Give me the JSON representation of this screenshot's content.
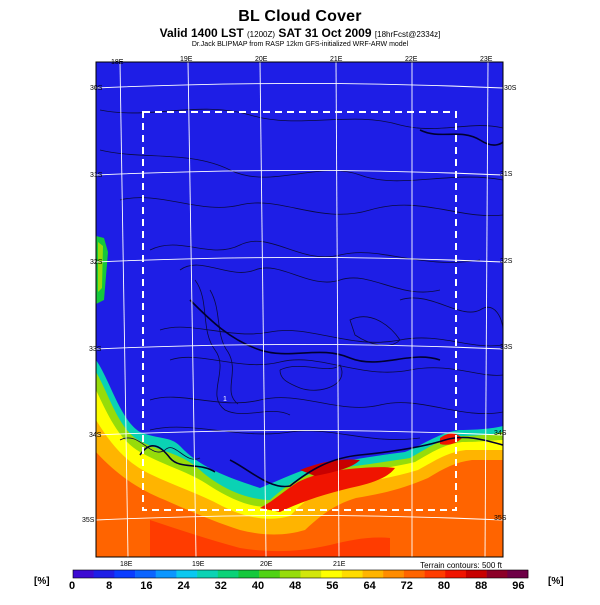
{
  "header": {
    "title": "BL Cloud Cover",
    "subtitle_main": "Valid 1400 LST",
    "subtitle_tz": "(1200Z)",
    "subtitle_date": "SAT 31 Oct 2009",
    "subtitle_forecast": "[18hrFcst@2334z]",
    "credit": "Dr.Jack BLIPMAP from RASP 12km GFS-initialized WRF-ARW model"
  },
  "map": {
    "top_lon_labels": [
      "18E",
      "19E",
      "20E",
      "21E",
      "22E",
      "23E"
    ],
    "bottom_lon_labels": [
      "18E",
      "19E",
      "20E",
      "21E"
    ],
    "left_lat_labels": [
      "30S",
      "31S",
      "32S",
      "33S",
      "34S",
      "35S"
    ],
    "right_lat_labels": [
      "30S",
      "31S",
      "32S",
      "33S",
      "34S",
      "35S"
    ],
    "spot_label": "1",
    "terrain_note": "Terrain contours: 500 ft"
  },
  "colorbar": {
    "unit": "[%]",
    "ticks": [
      "0",
      "8",
      "16",
      "24",
      "32",
      "40",
      "48",
      "56",
      "64",
      "72",
      "80",
      "88",
      "96"
    ],
    "colors": [
      "#3c0ad2",
      "#1e1ee6",
      "#0a3cff",
      "#0a64ff",
      "#0a96ff",
      "#0ac8f0",
      "#0ad2b4",
      "#0ad278",
      "#14c83c",
      "#50d214",
      "#96dc0a",
      "#d2e60a",
      "#ffff00",
      "#ffdc00",
      "#ffb400",
      "#ff8c00",
      "#ff6400",
      "#ff3c00",
      "#f01400",
      "#c80000",
      "#8c0028",
      "#6e0046"
    ]
  }
}
